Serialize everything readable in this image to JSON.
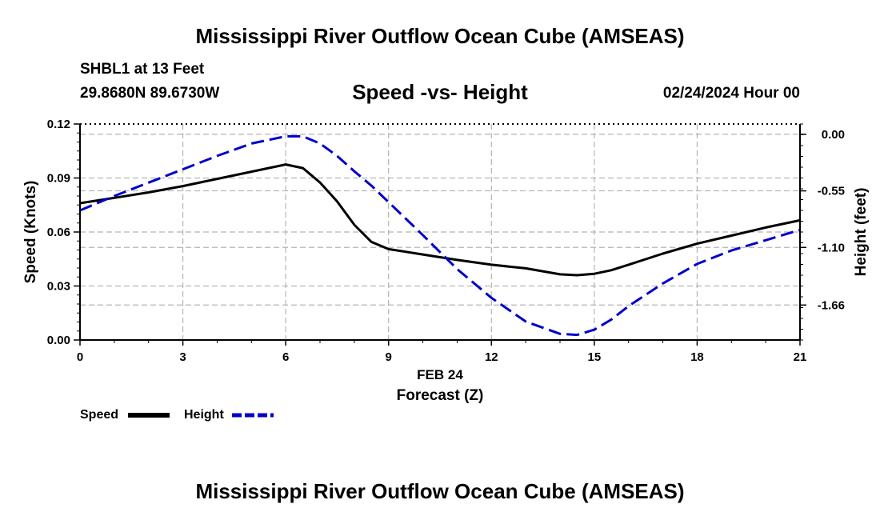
{
  "header": {
    "title": "Mississippi River Outflow Ocean Cube (AMSEAS)",
    "station": "SHBL1 at 13 Feet",
    "coordinates": "29.8680N  89.6730W",
    "subtitle": "Speed -vs- Height",
    "datetime": "02/24/2024 Hour 00"
  },
  "footer": {
    "title": "Mississippi River Outflow Ocean Cube (AMSEAS)"
  },
  "legend": {
    "speed_label": "Speed",
    "height_label": "Height"
  },
  "colors": {
    "speed": "#000000",
    "height": "#0000cc",
    "grid": "#b4b4b4"
  },
  "chart_data": {
    "type": "line",
    "title": "Speed -vs- Height",
    "xlabel": "Forecast (Z)",
    "xsublabel": "FEB 24",
    "ylabel": "Speed (Knots)",
    "y2label": "Height (feet)",
    "xlim": [
      0,
      21
    ],
    "ylim": [
      0,
      0.12
    ],
    "y2lim": [
      -2.0,
      0.1
    ],
    "xticks": [
      0,
      3,
      6,
      9,
      12,
      15,
      18,
      21
    ],
    "xtick_labels": [
      "0",
      "3",
      "6",
      "9",
      "12",
      "15",
      "18",
      "21"
    ],
    "yticks": [
      0.0,
      0.03,
      0.06,
      0.09,
      0.12
    ],
    "ytick_labels": [
      "0.00",
      "0.03",
      "0.06",
      "0.09",
      "0.12"
    ],
    "y2ticks": [
      0.0,
      -0.55,
      -1.1,
      -1.66
    ],
    "y2tick_labels": [
      "0.00",
      "-0.55",
      "-1.10",
      "-1.66"
    ],
    "grid": true,
    "series": [
      {
        "name": "Speed",
        "axis": "left",
        "style": "solid",
        "x": [
          0,
          1,
          2,
          3,
          4,
          5,
          6,
          6.5,
          7,
          7.5,
          8,
          8.5,
          9,
          10,
          11,
          12,
          13,
          14,
          14.5,
          15,
          15.5,
          16,
          17,
          18,
          19,
          20,
          21
        ],
        "values": [
          0.076,
          0.079,
          0.082,
          0.0855,
          0.0895,
          0.0935,
          0.0975,
          0.0955,
          0.0875,
          0.077,
          0.064,
          0.0545,
          0.0505,
          0.0475,
          0.0445,
          0.0418,
          0.0398,
          0.0365,
          0.036,
          0.0368,
          0.0388,
          0.0418,
          0.048,
          0.0535,
          0.058,
          0.0625,
          0.0665
        ]
      },
      {
        "name": "Height",
        "axis": "right",
        "style": "dashed",
        "x": [
          0,
          1,
          2,
          3,
          4,
          5,
          6,
          6.5,
          7,
          7.5,
          8,
          8.5,
          9,
          10,
          11,
          12,
          13,
          14,
          14.5,
          15,
          15.5,
          16,
          17,
          18,
          19,
          20,
          21
        ],
        "values": [
          -0.74,
          -0.6,
          -0.47,
          -0.34,
          -0.21,
          -0.09,
          -0.02,
          -0.02,
          -0.09,
          -0.21,
          -0.36,
          -0.5,
          -0.66,
          -0.98,
          -1.31,
          -1.59,
          -1.82,
          -1.94,
          -1.95,
          -1.9,
          -1.8,
          -1.67,
          -1.45,
          -1.26,
          -1.13,
          -1.03,
          -0.93
        ]
      }
    ]
  }
}
